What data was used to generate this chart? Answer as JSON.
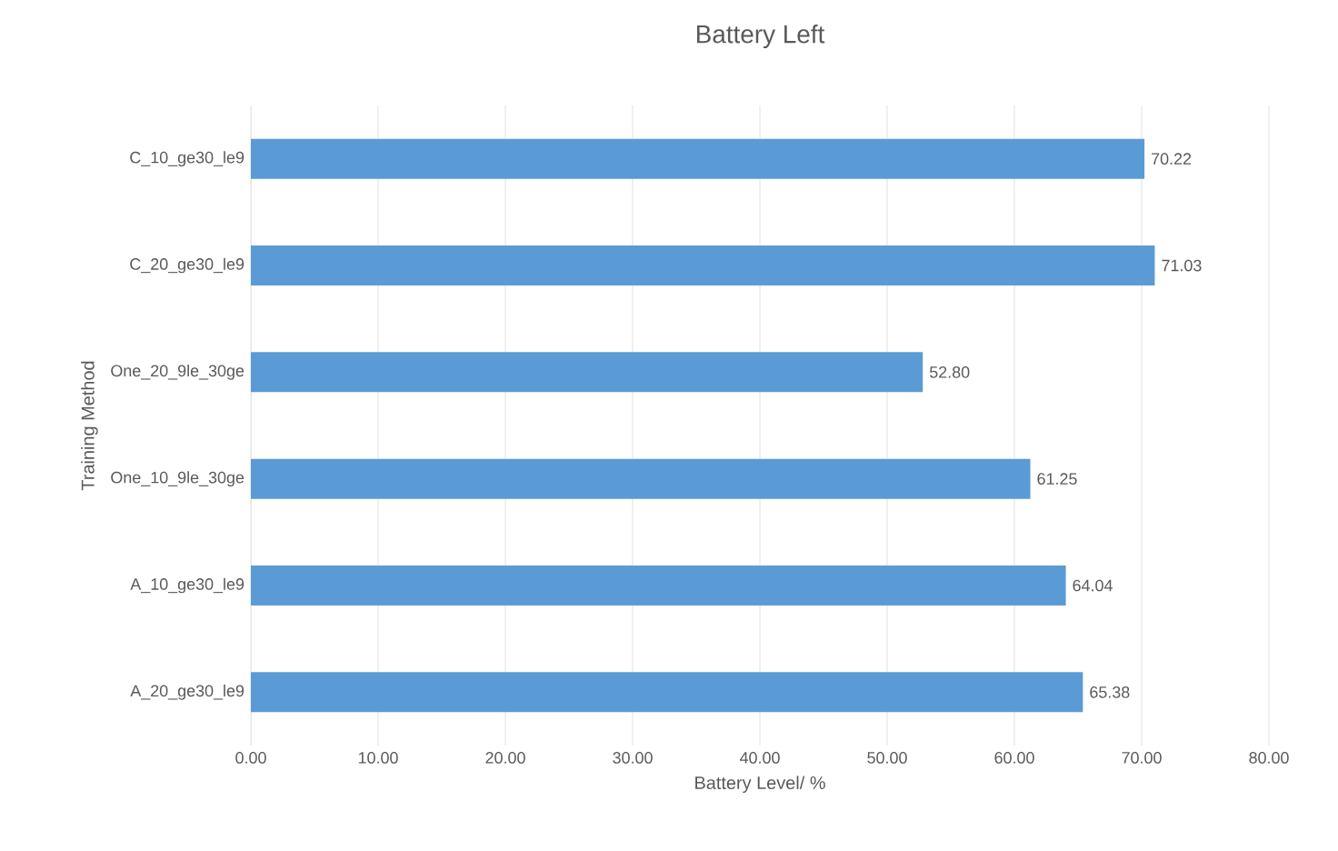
{
  "chart_data": {
    "type": "bar",
    "orientation": "horizontal",
    "title": "Battery Left",
    "xlabel": "Battery Level/ %",
    "ylabel": "Training Method",
    "categories": [
      "C_10_ge30_le9",
      "C_20_ge30_le9",
      "One_20_9le_30ge",
      "One_10_9le_30ge",
      "A_10_ge30_le9",
      "A_20_ge30_le9"
    ],
    "values": [
      70.22,
      71.03,
      52.8,
      61.25,
      64.04,
      65.38
    ],
    "value_labels": [
      "70.22",
      "71.03",
      "52.80",
      "61.25",
      "64.04",
      "65.38"
    ],
    "color": "#5b9bd5",
    "xlim": [
      0,
      80
    ],
    "xticks": [
      {
        "value": 0,
        "label": "0.00"
      },
      {
        "value": 10,
        "label": "10.00"
      },
      {
        "value": 20,
        "label": "20.00"
      },
      {
        "value": 30,
        "label": "30.00"
      },
      {
        "value": 40,
        "label": "40.00"
      },
      {
        "value": 50,
        "label": "50.00"
      },
      {
        "value": 60,
        "label": "60.00"
      },
      {
        "value": 70,
        "label": "70.00"
      },
      {
        "value": 80,
        "label": "80.00"
      }
    ],
    "grid": "x"
  }
}
